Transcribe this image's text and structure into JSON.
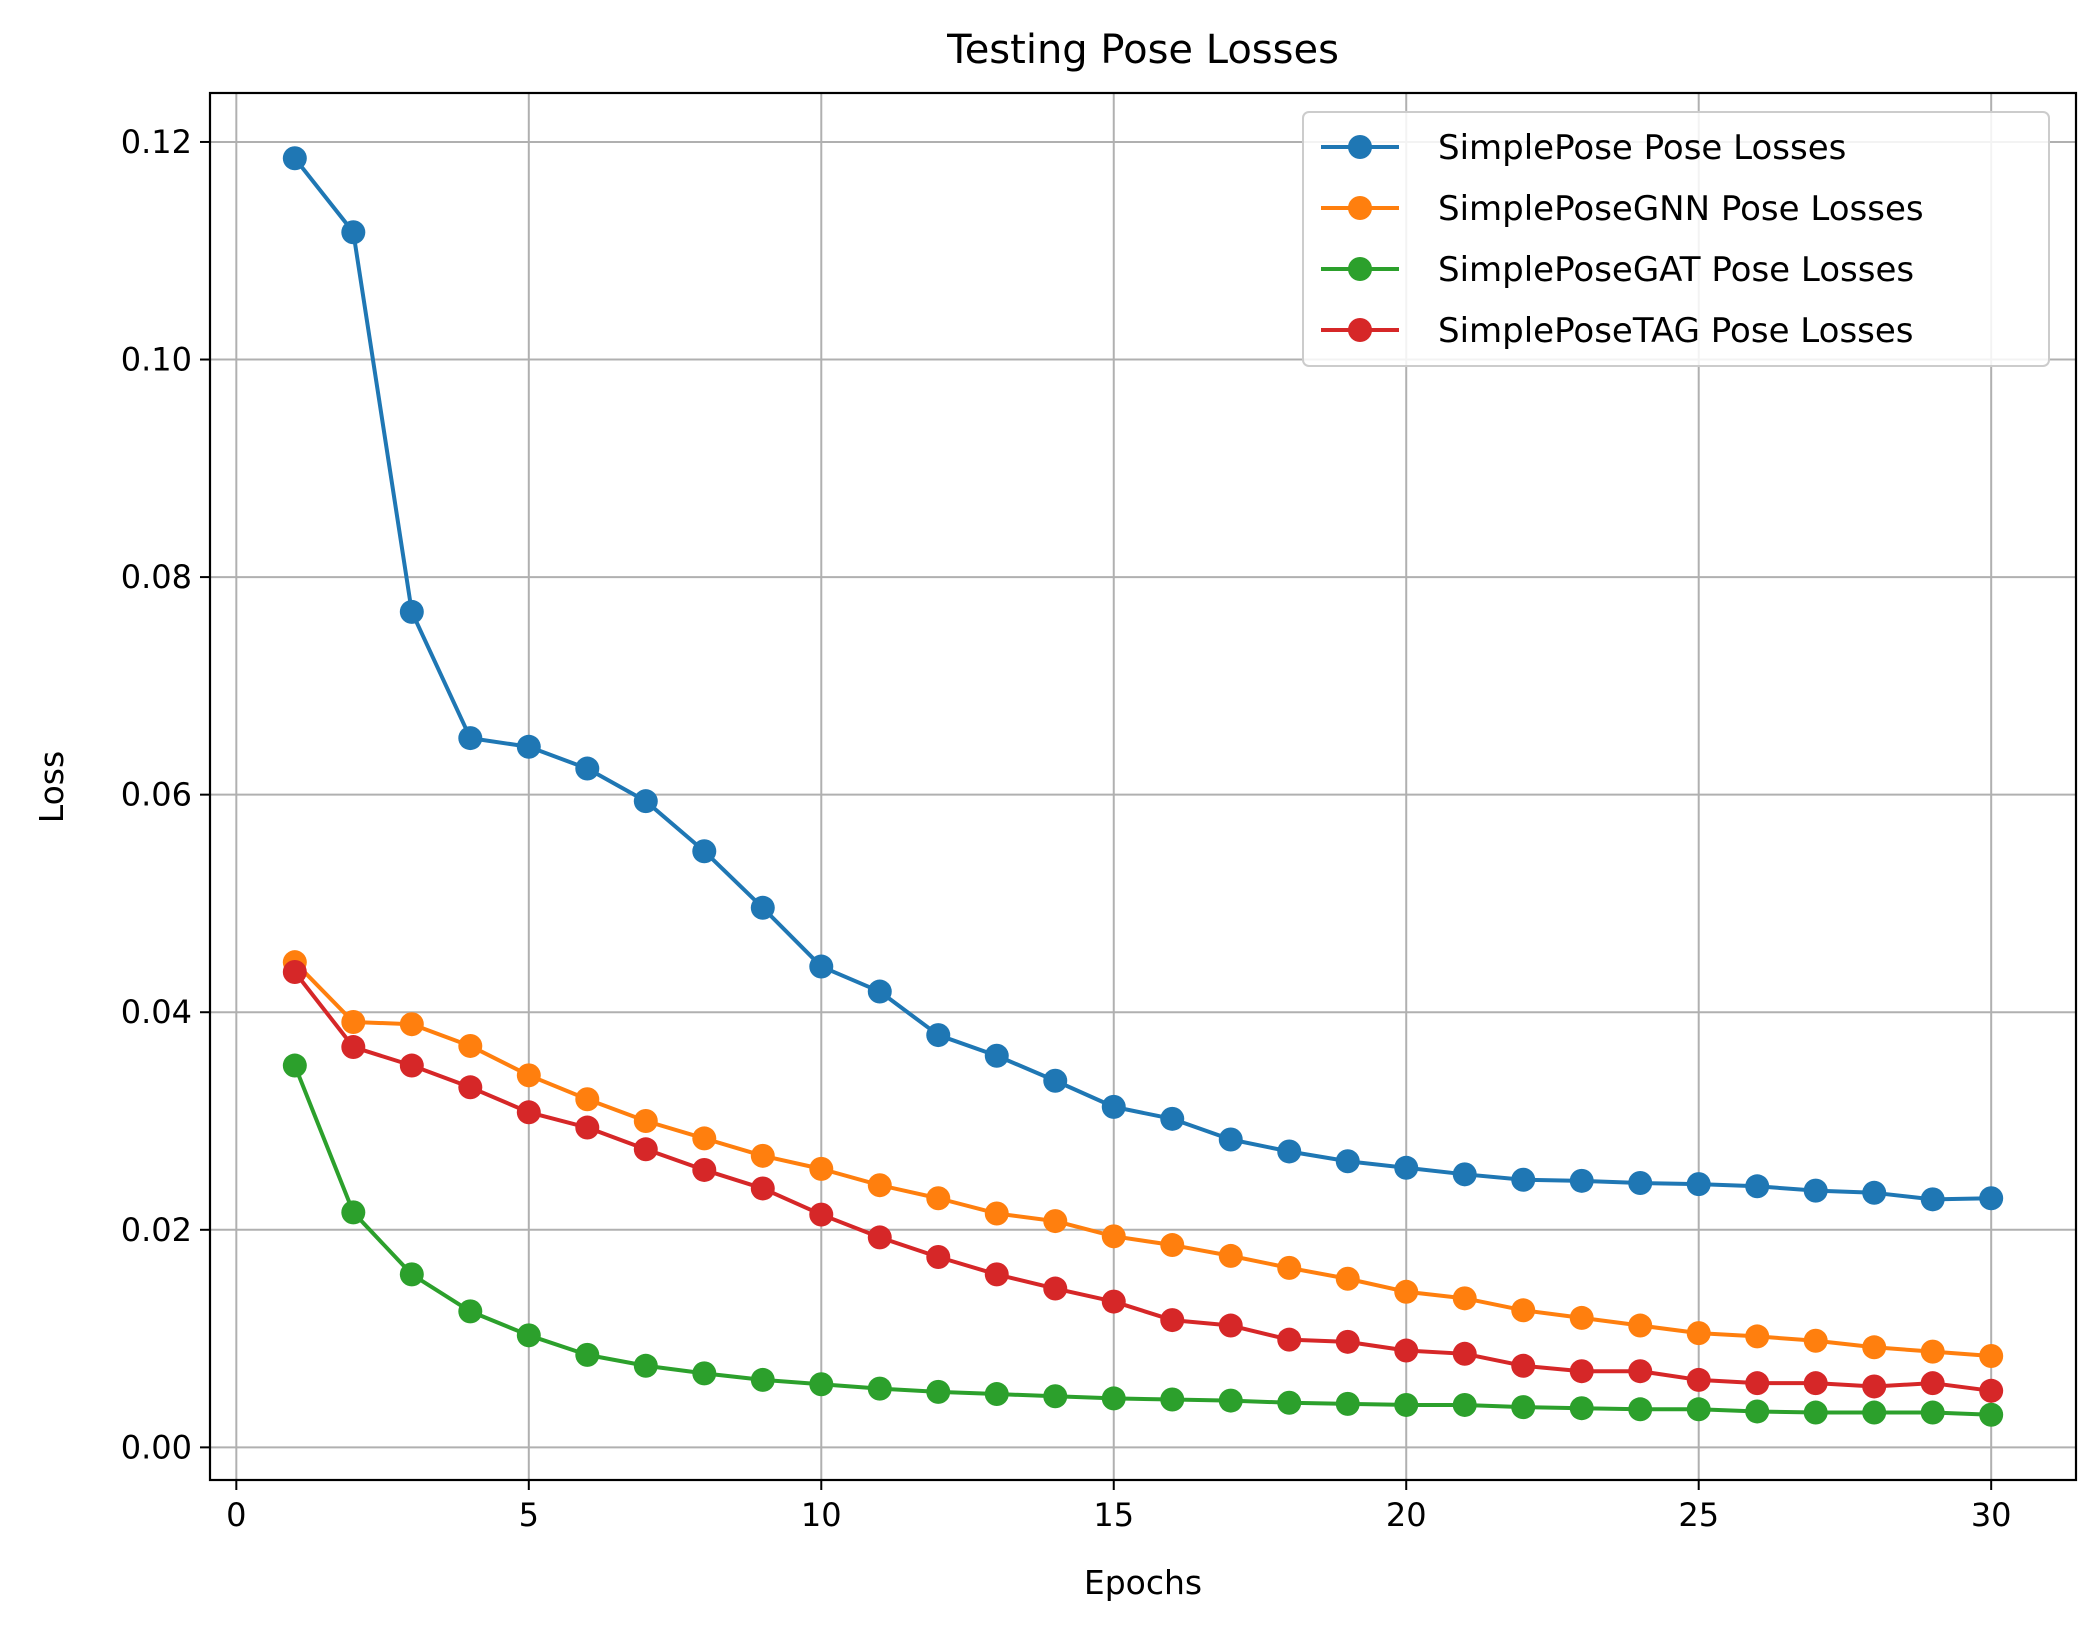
{
  "chart_data": {
    "type": "line",
    "title": "Testing Pose Losses",
    "xlabel": "Epochs",
    "ylabel": "Loss",
    "xlim": [
      -0.45,
      31.45
    ],
    "ylim": [
      -0.003,
      0.1245
    ],
    "xticks": [
      0,
      5,
      10,
      15,
      20,
      25,
      30
    ],
    "xtick_labels": [
      "0",
      "5",
      "10",
      "15",
      "20",
      "25",
      "30"
    ],
    "yticks": [
      0.0,
      0.02,
      0.04,
      0.06,
      0.08,
      0.1,
      0.12
    ],
    "ytick_labels": [
      "0.00",
      "0.02",
      "0.04",
      "0.06",
      "0.08",
      "0.10",
      "0.12"
    ],
    "grid": true,
    "legend_position": "top-right",
    "x": [
      1,
      2,
      3,
      4,
      5,
      6,
      7,
      8,
      9,
      10,
      11,
      12,
      13,
      14,
      15,
      16,
      17,
      18,
      19,
      20,
      21,
      22,
      23,
      24,
      25,
      26,
      27,
      28,
      29,
      30
    ],
    "series": [
      {
        "name": "SimplePose Pose Losses",
        "color": "#1f77b4",
        "values": [
          0.1185,
          0.1117,
          0.0768,
          0.0652,
          0.0644,
          0.0624,
          0.0594,
          0.0548,
          0.0496,
          0.0442,
          0.0419,
          0.0379,
          0.036,
          0.0337,
          0.0313,
          0.0302,
          0.0283,
          0.0272,
          0.0263,
          0.0257,
          0.0251,
          0.0246,
          0.0245,
          0.0243,
          0.0242,
          0.024,
          0.0236,
          0.0234,
          0.0228,
          0.0229
        ]
      },
      {
        "name": "SimplePoseGNN Pose Losses",
        "color": "#ff7f0e",
        "values": [
          0.0446,
          0.0391,
          0.0389,
          0.0369,
          0.0342,
          0.032,
          0.03,
          0.0284,
          0.0268,
          0.0256,
          0.0241,
          0.0229,
          0.0215,
          0.0208,
          0.0194,
          0.0186,
          0.0176,
          0.0165,
          0.0155,
          0.0143,
          0.0137,
          0.0126,
          0.0119,
          0.0112,
          0.0105,
          0.0102,
          0.0098,
          0.0092,
          0.0088,
          0.0084
        ]
      },
      {
        "name": "SimplePoseGAT Pose Losses",
        "color": "#2ca02c",
        "values": [
          0.0351,
          0.0216,
          0.0159,
          0.0125,
          0.0103,
          0.0085,
          0.0075,
          0.0068,
          0.0062,
          0.0058,
          0.0054,
          0.0051,
          0.0049,
          0.0047,
          0.0045,
          0.0044,
          0.0043,
          0.0041,
          0.004,
          0.0039,
          0.0039,
          0.0037,
          0.0036,
          0.0035,
          0.0035,
          0.0033,
          0.0032,
          0.0032,
          0.0032,
          0.003
        ]
      },
      {
        "name": "SimplePoseTAG Pose Losses",
        "color": "#d62728",
        "values": [
          0.0437,
          0.0368,
          0.0351,
          0.0331,
          0.0308,
          0.0294,
          0.0274,
          0.0255,
          0.0238,
          0.0214,
          0.0193,
          0.0175,
          0.0159,
          0.0146,
          0.0134,
          0.0117,
          0.0112,
          0.0099,
          0.0097,
          0.0089,
          0.0086,
          0.0075,
          0.007,
          0.007,
          0.0062,
          0.0059,
          0.0059,
          0.0056,
          0.0059,
          0.0052
        ]
      }
    ]
  }
}
